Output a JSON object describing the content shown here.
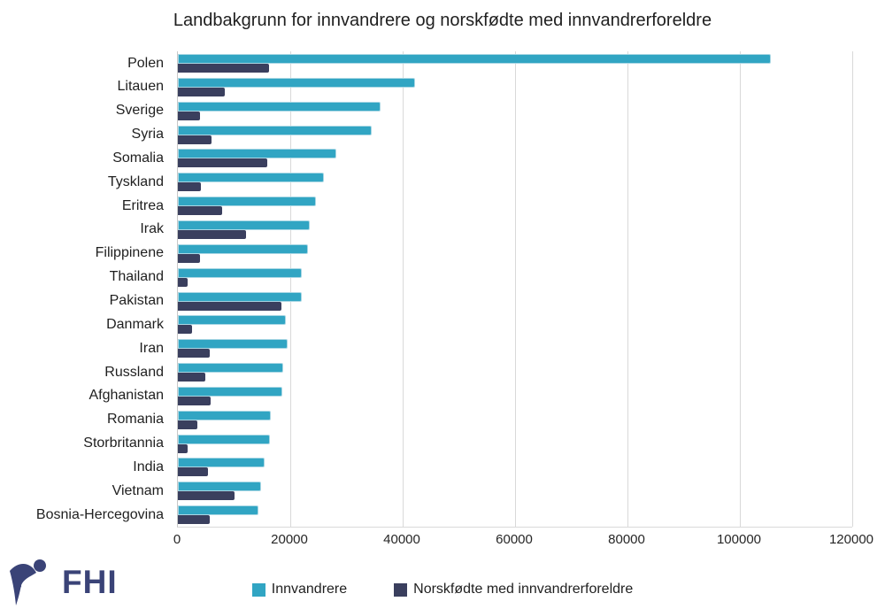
{
  "title": "Landbakgrunn for innvandrere og norskfødte med innvandrerforeldre",
  "chart_data": {
    "type": "bar",
    "orientation": "horizontal",
    "title": "Landbakgrunn for innvandrere og norskfødte med innvandrerforeldre",
    "categories": [
      "Polen",
      "Litauen",
      "Sverige",
      "Syria",
      "Somalia",
      "Tyskland",
      "Eritrea",
      "Irak",
      "Filippinene",
      "Thailand",
      "Pakistan",
      "Danmark",
      "Iran",
      "Russland",
      "Afghanistan",
      "Romania",
      "Storbritannia",
      "India",
      "Vietnam",
      "Bosnia-Hercegovina"
    ],
    "series": [
      {
        "name": "Innvandrere",
        "color": "#31a5c3",
        "values": [
          105500,
          42200,
          36000,
          34500,
          28200,
          26000,
          24600,
          23500,
          23100,
          22100,
          22100,
          19200,
          19600,
          18800,
          18600,
          16500,
          16300,
          15400,
          14800,
          14300
        ]
      },
      {
        "name": "Norskfødte med innvandrerforeldre",
        "color": "#3a3f5e",
        "values": [
          16200,
          8300,
          4000,
          6000,
          15900,
          4100,
          7900,
          12200,
          4000,
          1700,
          18500,
          2500,
          5700,
          4900,
          5900,
          3400,
          1700,
          5400,
          10000,
          5600
        ]
      }
    ],
    "xlabel": "",
    "ylabel": "",
    "xlim": [
      0,
      120000
    ],
    "x_ticks": [
      "0",
      "20000",
      "40000",
      "60000",
      "80000",
      "100000",
      "120000"
    ],
    "x_tick_values": [
      0,
      20000,
      40000,
      60000,
      80000,
      100000,
      120000
    ],
    "grid": true,
    "legend_position": "bottom"
  },
  "logo": {
    "text": "FHI",
    "icon": "fhi-figure-icon",
    "color": "#3a4377"
  },
  "colors": {
    "innvandrere": "#31a5c3",
    "norskfodte": "#3a3f5e",
    "gridline": "#d9d9d9",
    "axis": "#c8c8c8",
    "text": "#1f1f1f",
    "logo": "#3a4377"
  }
}
